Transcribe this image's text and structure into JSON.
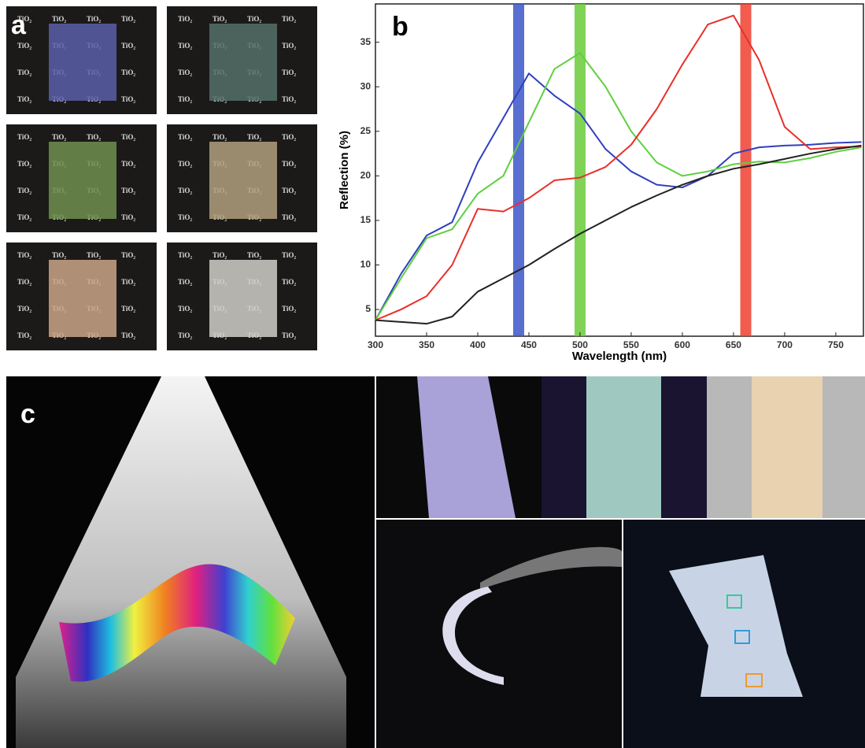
{
  "panel_labels": [
    "a",
    "b",
    "c"
  ],
  "panel_a": {
    "tile_label": "TiO₂"
  },
  "chart_data": {
    "type": "line",
    "xlabel": "Wavelength (nm)",
    "ylabel": "Reflection (%)",
    "x": [
      300,
      325,
      350,
      375,
      400,
      425,
      450,
      475,
      500,
      525,
      550,
      575,
      600,
      625,
      650,
      675,
      700,
      725,
      750,
      775
    ],
    "series": [
      {
        "color": "#2f3fbf",
        "values": [
          3.8,
          9,
          13.3,
          14.8,
          21.5,
          26.5,
          31.5,
          29,
          27,
          23,
          20.5,
          19,
          18.7,
          20,
          22.5,
          23.2,
          23.4,
          23.5,
          23.7,
          23.8
        ]
      },
      {
        "color": "#5fcf3f",
        "values": [
          3.8,
          8.5,
          13,
          14,
          18,
          20,
          26,
          32,
          33.8,
          30,
          25,
          21.5,
          20,
          20.5,
          21.3,
          21.6,
          21.5,
          22,
          22.7,
          23.2
        ]
      },
      {
        "color": "#e8302a",
        "values": [
          3.8,
          5,
          6.5,
          10,
          16.3,
          16,
          17.5,
          19.5,
          19.8,
          21,
          23.5,
          27.5,
          32.5,
          37,
          38,
          33,
          25.5,
          23,
          23.2,
          23.3
        ]
      },
      {
        "color": "#222222",
        "values": [
          3.8,
          3.6,
          3.4,
          4.2,
          7,
          8.5,
          10,
          11.8,
          13.5,
          15,
          16.5,
          17.8,
          19,
          20,
          20.8,
          21.3,
          21.9,
          22.5,
          23,
          23.4
        ]
      }
    ],
    "bands": [
      {
        "x": 440,
        "color": "#3b55c8"
      },
      {
        "x": 500,
        "color": "#6acb3a"
      },
      {
        "x": 662,
        "color": "#ee4030"
      }
    ],
    "xlim": [
      300,
      777
    ],
    "ylim": [
      2,
      39.3
    ],
    "xticks": [
      300,
      350,
      400,
      450,
      500,
      550,
      600,
      650,
      700,
      750
    ],
    "yticks": [
      5,
      10,
      15,
      20,
      25,
      30,
      35
    ]
  }
}
